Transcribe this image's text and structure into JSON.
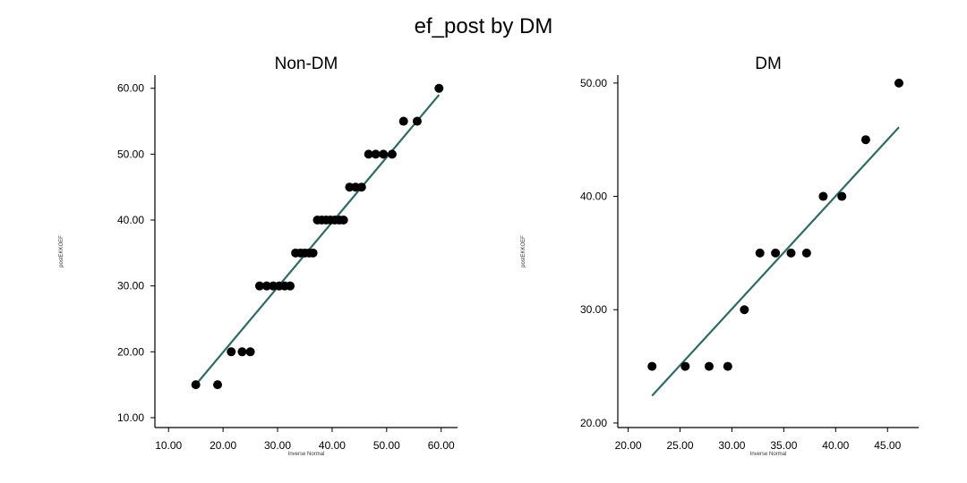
{
  "title": "ef_post by DM",
  "chart_data": [
    {
      "type": "scatter",
      "title": "Non-DM",
      "xlabel": "Inverse Normal",
      "ylabel": "postEKKOEF",
      "xlim": [
        7.5,
        63.0
      ],
      "ylim": [
        8.5,
        62.0
      ],
      "xticks": [
        10,
        20,
        30,
        40,
        50,
        60
      ],
      "yticks": [
        10,
        20,
        30,
        40,
        50,
        60
      ],
      "tick_labels_x": [
        "10.00",
        "20.00",
        "30.00",
        "40.00",
        "50.00",
        "60.00"
      ],
      "tick_labels_y": [
        "10.00",
        "20.00",
        "30.00",
        "40.00",
        "50.00",
        "60.00"
      ],
      "points": [
        {
          "x": 15.0,
          "y": 15
        },
        {
          "x": 19.0,
          "y": 15
        },
        {
          "x": 21.5,
          "y": 20
        },
        {
          "x": 23.5,
          "y": 20
        },
        {
          "x": 25.0,
          "y": 20
        },
        {
          "x": 26.7,
          "y": 30
        },
        {
          "x": 28.0,
          "y": 30
        },
        {
          "x": 29.2,
          "y": 30
        },
        {
          "x": 30.3,
          "y": 30
        },
        {
          "x": 31.3,
          "y": 30
        },
        {
          "x": 32.3,
          "y": 30
        },
        {
          "x": 33.3,
          "y": 35
        },
        {
          "x": 34.2,
          "y": 35
        },
        {
          "x": 35.0,
          "y": 35
        },
        {
          "x": 35.8,
          "y": 35
        },
        {
          "x": 36.5,
          "y": 35
        },
        {
          "x": 37.3,
          "y": 40
        },
        {
          "x": 38.1,
          "y": 40
        },
        {
          "x": 38.9,
          "y": 40
        },
        {
          "x": 39.7,
          "y": 40
        },
        {
          "x": 40.5,
          "y": 40
        },
        {
          "x": 41.3,
          "y": 40
        },
        {
          "x": 42.1,
          "y": 40
        },
        {
          "x": 43.2,
          "y": 45
        },
        {
          "x": 44.3,
          "y": 45
        },
        {
          "x": 45.4,
          "y": 45
        },
        {
          "x": 46.7,
          "y": 50
        },
        {
          "x": 48.0,
          "y": 50
        },
        {
          "x": 49.4,
          "y": 50
        },
        {
          "x": 51.0,
          "y": 50
        },
        {
          "x": 53.1,
          "y": 55
        },
        {
          "x": 55.6,
          "y": 55
        },
        {
          "x": 59.6,
          "y": 60
        }
      ],
      "fit_line": {
        "x": [
          15.0,
          59.6
        ],
        "y": [
          15.0,
          59.0
        ]
      }
    },
    {
      "type": "scatter",
      "title": "DM",
      "xlabel": "Inverse Normal",
      "ylabel": "postEKKOEF",
      "xlim": [
        19.0,
        48.0
      ],
      "ylim": [
        19.6,
        50.7
      ],
      "xticks": [
        20,
        25,
        30,
        35,
        40,
        45
      ],
      "yticks": [
        20,
        30,
        40,
        50
      ],
      "tick_labels_x": [
        "20.00",
        "25.00",
        "30.00",
        "35.00",
        "40.00",
        "45.00"
      ],
      "tick_labels_y": [
        "20.00",
        "30.00",
        "40.00",
        "50.00"
      ],
      "points": [
        {
          "x": 22.3,
          "y": 25
        },
        {
          "x": 25.5,
          "y": 25
        },
        {
          "x": 27.8,
          "y": 25
        },
        {
          "x": 29.6,
          "y": 25
        },
        {
          "x": 31.2,
          "y": 30
        },
        {
          "x": 32.7,
          "y": 35
        },
        {
          "x": 34.2,
          "y": 35
        },
        {
          "x": 35.7,
          "y": 35
        },
        {
          "x": 37.2,
          "y": 35
        },
        {
          "x": 38.8,
          "y": 40
        },
        {
          "x": 40.6,
          "y": 40
        },
        {
          "x": 42.9,
          "y": 45
        },
        {
          "x": 46.1,
          "y": 50
        }
      ],
      "fit_line": {
        "x": [
          22.3,
          46.1
        ],
        "y": [
          22.4,
          46.1
        ]
      }
    }
  ],
  "colors": {
    "points": "#000000",
    "fit_line": "#2e6b66",
    "axis": "#000000"
  }
}
